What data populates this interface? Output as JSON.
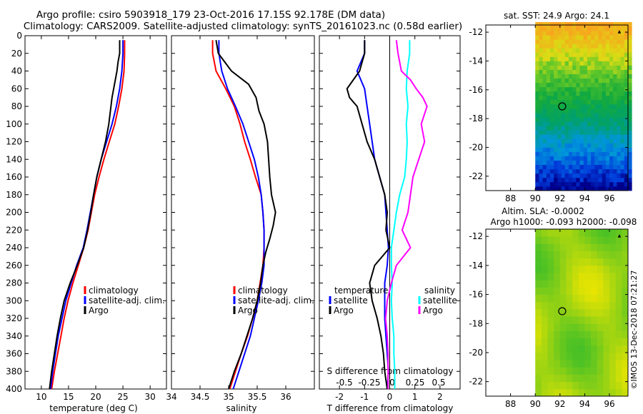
{
  "header": {
    "title_line1": "Argo profile: csiro 5903918_179 23-Oct-2016 17.15S 92.178E (DM data)",
    "title_line2": "Climatology: CARS2009. Satellite-adjusted climatology: synTS_20161023.nc (0.58d earlier)"
  },
  "colors": {
    "climatology": "#ff0000",
    "satellite": "#0000ff",
    "argo": "#000000",
    "s_satellite": "#00ffff",
    "s_argo": "#ff00ff"
  },
  "watermark": "©IMOS 13-Dec-2018 07:21:27",
  "chart_data": [
    {
      "type": "line",
      "id": "temperature",
      "xlabel": "temperature (deg C)",
      "ylabel": "",
      "xlim": [
        7,
        33
      ],
      "ylim": [
        400,
        0
      ],
      "xticks": [
        10,
        15,
        20,
        25,
        30
      ],
      "yticks": [
        0,
        20,
        40,
        60,
        80,
        100,
        120,
        140,
        160,
        180,
        200,
        220,
        240,
        260,
        280,
        300,
        320,
        340,
        360,
        380,
        400
      ],
      "legend": {
        "position": "middle-right",
        "entries": [
          "climatology",
          "satellite-adj. clim.",
          "Argo"
        ]
      },
      "series": [
        {
          "name": "climatology",
          "color": "#ff0000",
          "depth": [
            5,
            20,
            40,
            60,
            80,
            100,
            120,
            140,
            160,
            180,
            200,
            220,
            240,
            260,
            280,
            300,
            320,
            340,
            360,
            380,
            400
          ],
          "values": [
            25.3,
            25.3,
            25.2,
            24.8,
            24.2,
            23.5,
            22.5,
            21.5,
            20.6,
            19.8,
            19.2,
            18.6,
            17.8,
            16.8,
            15.8,
            14.9,
            14.2,
            13.6,
            13.0,
            12.4,
            11.9
          ]
        },
        {
          "name": "satellite-adj. clim.",
          "color": "#0000ff",
          "depth": [
            5,
            20,
            40,
            60,
            80,
            100,
            120,
            140,
            160,
            180,
            200,
            220,
            240,
            260,
            280,
            300,
            320,
            340,
            360,
            380,
            400
          ],
          "values": [
            25.0,
            25.0,
            24.8,
            24.4,
            23.8,
            23.0,
            22.0,
            21.0,
            20.2,
            19.6,
            19.0,
            18.4,
            17.7,
            16.5,
            15.5,
            14.5,
            13.8,
            13.1,
            12.6,
            12.1,
            11.7
          ]
        },
        {
          "name": "Argo",
          "color": "#000000",
          "depth": [
            5,
            20,
            30,
            40,
            50,
            60,
            70,
            80,
            100,
            120,
            140,
            160,
            180,
            200,
            220,
            240,
            260,
            280,
            300,
            320,
            340,
            360,
            380,
            400
          ],
          "values": [
            24.4,
            24.4,
            24.1,
            23.9,
            23.6,
            23.3,
            23.0,
            22.8,
            22.4,
            21.8,
            21.0,
            20.2,
            19.6,
            19.1,
            18.5,
            17.8,
            16.6,
            15.3,
            14.2,
            13.5,
            12.9,
            12.4,
            11.9,
            11.5
          ]
        }
      ]
    },
    {
      "type": "line",
      "id": "salinity",
      "xlabel": "salinity",
      "ylabel": "",
      "xlim": [
        34,
        36.5
      ],
      "ylim": [
        400,
        0
      ],
      "xticks": [
        34,
        34.5,
        35,
        35.5,
        36
      ],
      "legend": {
        "position": "middle-right",
        "entries": [
          "climatology",
          "satellite-adj. clim.",
          "Argo"
        ]
      },
      "series": [
        {
          "name": "climatology",
          "color": "#ff0000",
          "depth": [
            5,
            20,
            40,
            60,
            80,
            100,
            120,
            140,
            160,
            180,
            200,
            220,
            240,
            260,
            280,
            300,
            320,
            340,
            360,
            380,
            400
          ],
          "values": [
            34.72,
            34.72,
            34.78,
            34.95,
            35.1,
            35.2,
            35.28,
            35.38,
            35.47,
            35.57,
            35.6,
            35.62,
            35.62,
            35.6,
            35.55,
            35.5,
            35.42,
            35.33,
            35.22,
            35.12,
            35.02
          ]
        },
        {
          "name": "satellite-adj. clim.",
          "color": "#0000ff",
          "depth": [
            5,
            20,
            40,
            60,
            80,
            100,
            120,
            140,
            160,
            180,
            200,
            220,
            240,
            260,
            280,
            300,
            320,
            340,
            360,
            380,
            400
          ],
          "values": [
            34.83,
            34.83,
            34.88,
            34.98,
            35.12,
            35.25,
            35.35,
            35.45,
            35.52,
            35.57,
            35.6,
            35.62,
            35.62,
            35.62,
            35.58,
            35.52,
            35.45,
            35.38,
            35.28,
            35.18,
            35.08
          ]
        },
        {
          "name": "Argo",
          "color": "#000000",
          "depth": [
            5,
            20,
            40,
            55,
            70,
            85,
            100,
            120,
            140,
            160,
            180,
            200,
            215,
            230,
            245,
            260,
            280,
            300,
            320,
            340,
            360,
            380,
            400
          ],
          "values": [
            34.78,
            34.82,
            35.05,
            35.35,
            35.48,
            35.53,
            35.62,
            35.68,
            35.7,
            35.72,
            35.75,
            35.82,
            35.78,
            35.72,
            35.65,
            35.6,
            35.56,
            35.5,
            35.42,
            35.32,
            35.22,
            35.1,
            35.0
          ]
        }
      ]
    },
    {
      "type": "line",
      "id": "differences",
      "xlabel": "T difference from climatology",
      "xlabel_top": "S difference from climatology",
      "xlim": [
        -2.8,
        2.8
      ],
      "xticks": [
        -2,
        -1,
        0,
        1,
        2
      ],
      "s_xticks": [
        -0.5,
        -0.25,
        0,
        0.25,
        0.5
      ],
      "s_xtick_labels": [
        "-0.5",
        "-0.25",
        "0",
        "0.25",
        "0.5"
      ],
      "ylim": [
        400,
        0
      ],
      "legend_temperature": {
        "title": "temperature",
        "entries": [
          "satellite",
          "Argo"
        ]
      },
      "legend_salinity": {
        "title": "salinity",
        "entries": [
          "satellite",
          "Argo"
        ]
      },
      "series": [
        {
          "name": "T satellite",
          "color": "#0000ff",
          "depth": [
            5,
            20,
            40,
            60,
            80,
            100,
            120,
            140,
            160,
            180,
            200,
            220,
            240,
            260,
            280,
            300,
            320,
            340,
            360,
            380,
            400
          ],
          "values": [
            -1.0,
            -1.0,
            -1.3,
            -1.0,
            -0.9,
            -0.8,
            -0.7,
            -0.6,
            -0.4,
            -0.2,
            -0.15,
            -0.1,
            -0.05,
            -0.1,
            -0.2,
            -0.2,
            -0.2,
            -0.15,
            -0.1,
            -0.05,
            -0.1
          ]
        },
        {
          "name": "T Argo",
          "color": "#000000",
          "depth": [
            5,
            20,
            40,
            60,
            70,
            80,
            100,
            120,
            140,
            160,
            180,
            200,
            220,
            240,
            260,
            280,
            300,
            320,
            340,
            360,
            380,
            400
          ],
          "values": [
            -1.0,
            -1.0,
            -1.2,
            -1.7,
            -1.6,
            -1.3,
            -1.1,
            -0.9,
            -0.6,
            -0.4,
            -0.2,
            -0.1,
            -0.15,
            0.0,
            -0.6,
            -0.8,
            -0.7,
            -0.5,
            -0.35,
            -0.25,
            -0.2,
            -0.1
          ]
        },
        {
          "name": "S satellite",
          "color": "#00ffff",
          "depth": [
            5,
            20,
            40,
            60,
            80,
            100,
            120,
            140,
            160,
            180,
            200,
            220,
            240,
            260,
            280,
            300,
            320,
            340,
            360,
            380,
            400
          ],
          "values": [
            0.24,
            0.24,
            0.21,
            0.2,
            0.22,
            0.2,
            0.21,
            0.2,
            0.18,
            0.12,
            0.08,
            0.05,
            0.02,
            0.02,
            0.03,
            0.02,
            0.03,
            0.05,
            0.05,
            0.06,
            0.06
          ]
        },
        {
          "name": "S Argo",
          "color": "#ff00ff",
          "depth": [
            5,
            20,
            40,
            50,
            60,
            70,
            80,
            100,
            120,
            140,
            160,
            180,
            200,
            220,
            240,
            260,
            280,
            300,
            320,
            340,
            360,
            380,
            400
          ],
          "values": [
            0.08,
            0.1,
            0.14,
            0.25,
            0.32,
            0.4,
            0.45,
            0.38,
            0.42,
            0.35,
            0.28,
            0.25,
            0.22,
            0.15,
            0.25,
            0.08,
            0.02,
            -0.03,
            -0.05,
            -0.03,
            -0.02,
            -0.02,
            -0.02
          ]
        }
      ]
    },
    {
      "type": "heatmap",
      "id": "sst_map",
      "title": "sat. SST: 24.9 Argo: 24.1",
      "xlim": [
        86,
        97.5
      ],
      "ylim": [
        -23,
        -11.5
      ],
      "xticks": [
        88,
        90,
        92,
        94,
        96
      ],
      "yticks": [
        -12,
        -14,
        -16,
        -18,
        -20,
        -22
      ],
      "data_lon_start": 90,
      "argo_position": {
        "lon": 92.178,
        "lat": -17.15
      }
    },
    {
      "type": "heatmap",
      "id": "sla_map",
      "title": "Altim. SLA: -0.0002",
      "subtitle": "Argo h1000: -0.093 h2000: -0.098",
      "xlim": [
        86,
        97.5
      ],
      "ylim": [
        -23,
        -11.5
      ],
      "xticks": [
        88,
        90,
        92,
        94,
        96
      ],
      "yticks": [
        -12,
        -14,
        -16,
        -18,
        -20,
        -22
      ],
      "data_lon_start": 90,
      "argo_position": {
        "lon": 92.178,
        "lat": -17.15
      }
    }
  ]
}
